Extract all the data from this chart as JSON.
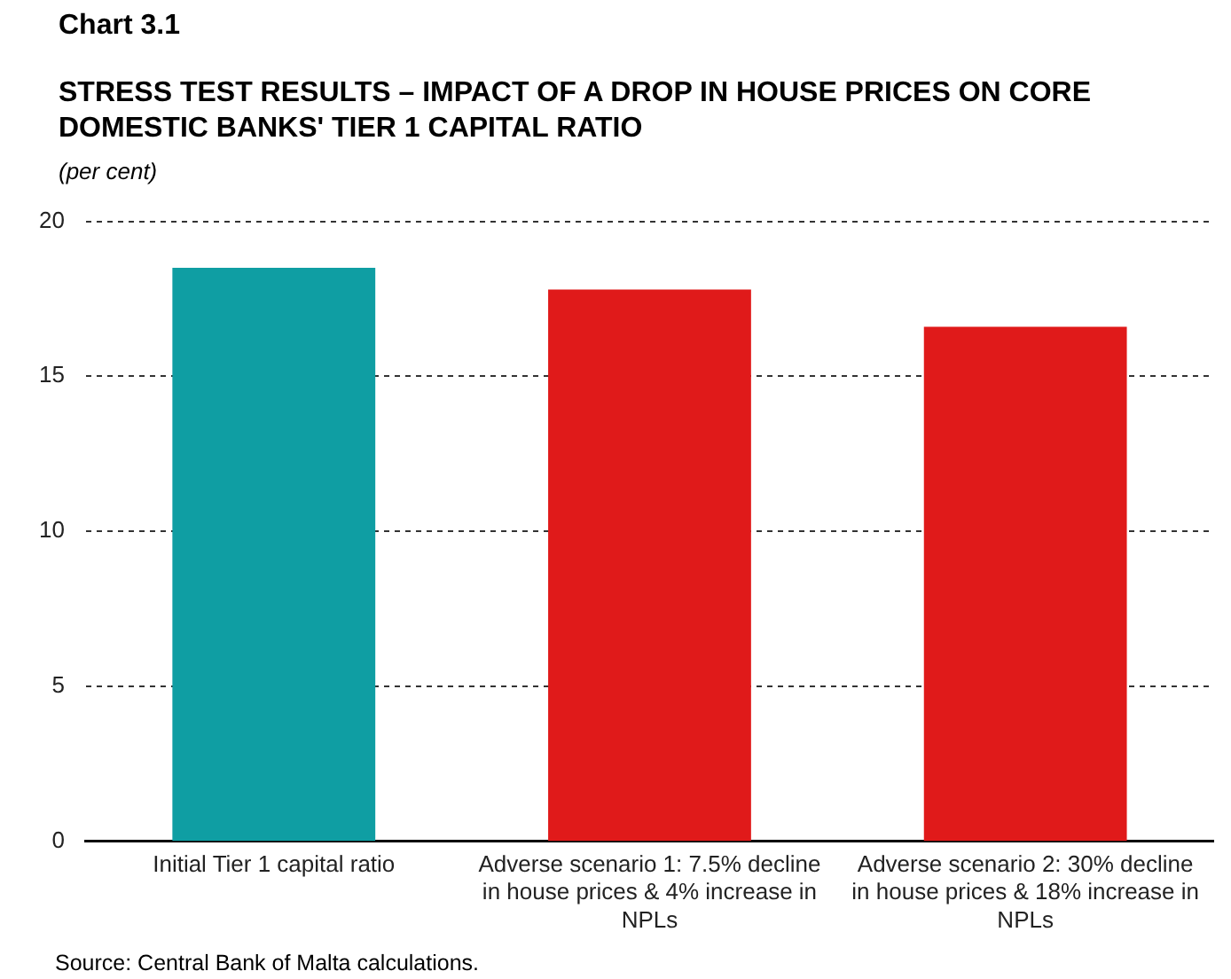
{
  "chart_data": {
    "type": "bar",
    "title": "Chart 3.1",
    "subtitle": "STRESS TEST RESULTS – IMPACT OF A DROP IN HOUSE PRICES ON CORE DOMESTIC BANKS' TIER 1 CAPITAL RATIO",
    "ylabel": "(per cent)",
    "categories": [
      "Initial Tier 1 capital ratio",
      "Adverse scenario 1: 7.5% decline in house prices & 4% increase in NPLs",
      "Adverse scenario 2: 30% decline in house prices & 18% increase in NPLs"
    ],
    "values": [
      18.5,
      17.8,
      16.6
    ],
    "colors": [
      "#0f9ea3",
      "#e01a1a",
      "#e01a1a"
    ],
    "ylim": [
      0,
      20
    ],
    "yticks": [
      0,
      5,
      10,
      15,
      20
    ],
    "grid": "y",
    "annotations": [
      "Source: Central Bank of Malta calculations."
    ]
  }
}
